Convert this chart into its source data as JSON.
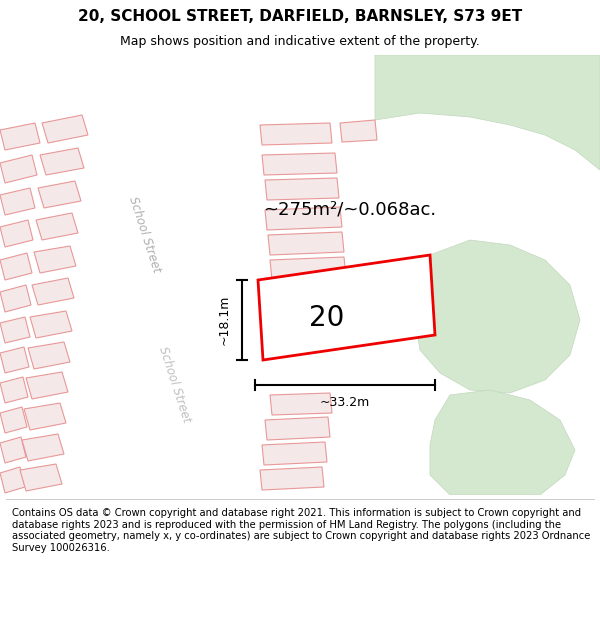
{
  "title": "20, SCHOOL STREET, DARFIELD, BARNSLEY, S73 9ET",
  "subtitle": "Map shows position and indicative extent of the property.",
  "footer": "Contains OS data © Crown copyright and database right 2021. This information is subject to Crown copyright and database rights 2023 and is reproduced with the permission of HM Land Registry. The polygons (including the associated geometry, namely x, y co-ordinates) are subject to Crown copyright and database rights 2023 Ordnance Survey 100026316.",
  "title_fontsize": 11,
  "subtitle_fontsize": 9,
  "footer_fontsize": 7.2,
  "building_fill": "#f5e8e8",
  "building_edge": "#e89898",
  "building_lw": 0.8,
  "road_fill": "#ffffff",
  "map_bg": "#f7f4f0",
  "green_fill": "#d4e8d0",
  "green_edge": "#c0d8bc",
  "highlight_fill": "#ffffff",
  "highlight_edge": "#ee0000",
  "highlight_lw": 2.0,
  "area_text": "~275m²/~0.068ac.",
  "number_text": "20",
  "dim_width": "~33.2m",
  "dim_height": "~18.1m",
  "street_label": "School Street",
  "area_fontsize": 13,
  "number_fontsize": 20,
  "dim_fontsize": 9,
  "street_fontsize": 8.5
}
